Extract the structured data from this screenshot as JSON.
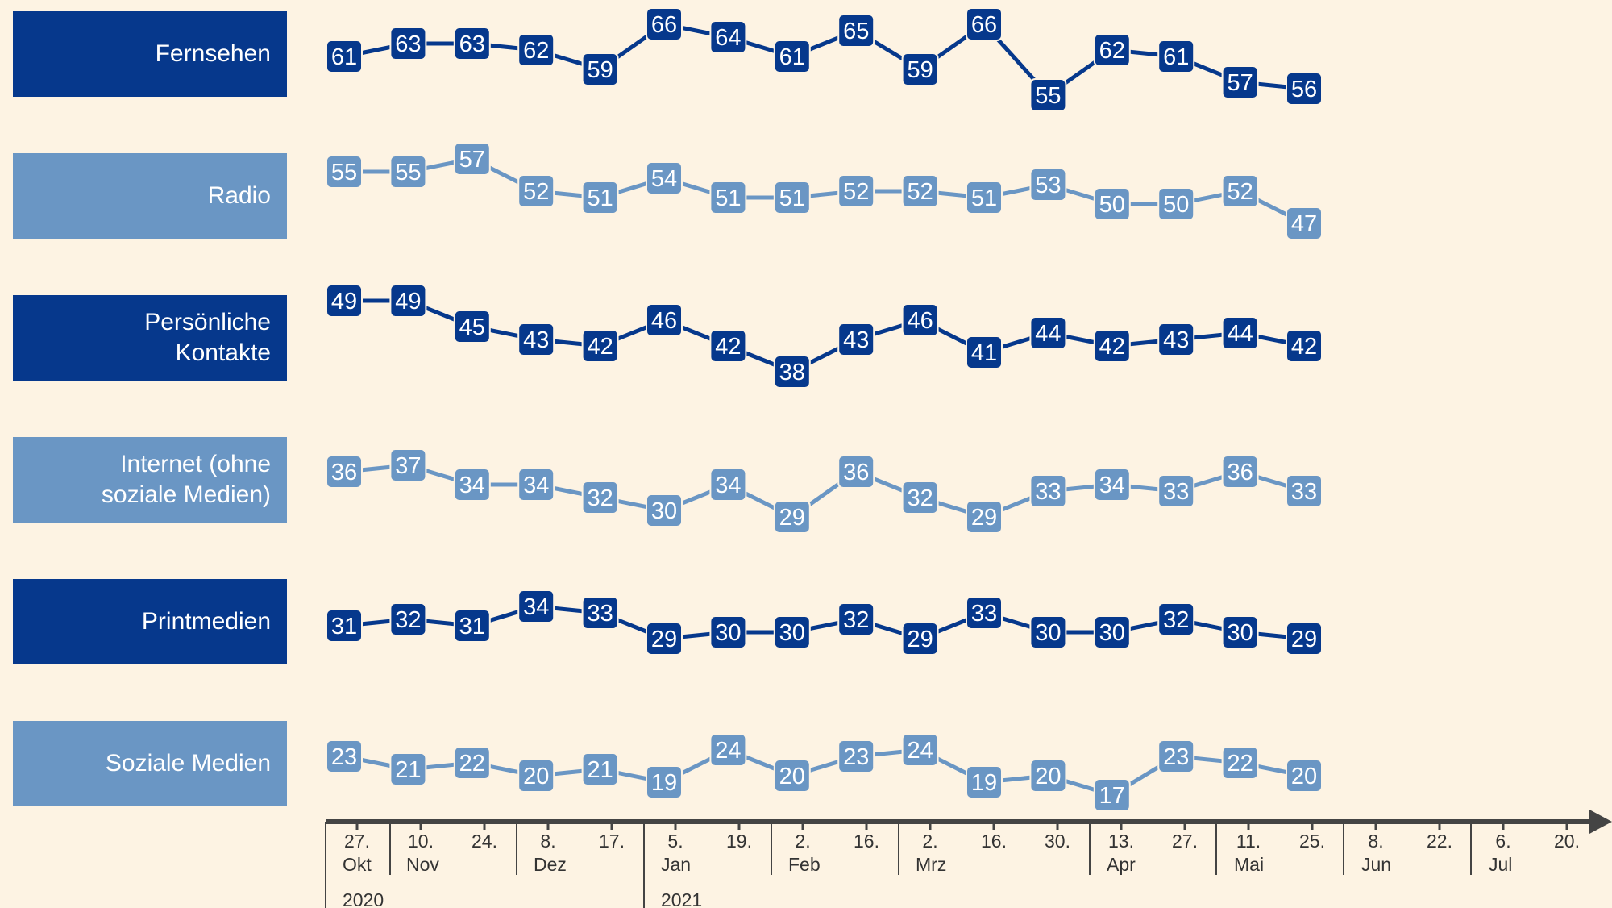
{
  "colors": {
    "background": "#fdf3e3",
    "dark_blue": "#06388c",
    "light_blue": "#6a96c4",
    "axis": "#444444"
  },
  "chart_data": {
    "type": "line",
    "title": "",
    "xlabel": "",
    "ylabel": "",
    "x": [
      "2020-10-27",
      "2020-11-10",
      "2020-11-24",
      "2020-12-08",
      "2020-12-17",
      "2021-01-05",
      "2021-01-19",
      "2021-02-02",
      "2021-02-16",
      "2021-03-02",
      "2021-03-16",
      "2021-03-30",
      "2021-04-13",
      "2021-04-27",
      "2021-05-11",
      "2021-05-25"
    ],
    "series": [
      {
        "name": "Fernsehen",
        "color": "#06388c",
        "values": [
          61,
          63,
          63,
          62,
          59,
          66,
          64,
          61,
          65,
          59,
          66,
          55,
          62,
          61,
          57,
          56
        ]
      },
      {
        "name": "Radio",
        "color": "#6a96c4",
        "values": [
          55,
          55,
          57,
          52,
          51,
          54,
          51,
          51,
          52,
          52,
          51,
          53,
          50,
          50,
          52,
          47
        ]
      },
      {
        "name": "Persönliche\nKontakte",
        "color": "#06388c",
        "values": [
          49,
          49,
          45,
          43,
          42,
          46,
          42,
          38,
          43,
          46,
          41,
          44,
          42,
          43,
          44,
          42
        ]
      },
      {
        "name": "Internet (ohne\nsoziale Medien)",
        "color": "#6a96c4",
        "values": [
          36,
          37,
          34,
          34,
          32,
          30,
          34,
          29,
          36,
          32,
          29,
          33,
          34,
          33,
          36,
          33
        ]
      },
      {
        "name": "Printmedien",
        "color": "#06388c",
        "values": [
          31,
          32,
          31,
          34,
          33,
          29,
          30,
          30,
          32,
          29,
          33,
          30,
          30,
          32,
          30,
          29
        ]
      },
      {
        "name": "Soziale Medien",
        "color": "#6a96c4",
        "values": [
          23,
          21,
          22,
          20,
          21,
          19,
          24,
          20,
          23,
          24,
          19,
          20,
          17,
          23,
          22,
          20
        ]
      }
    ],
    "x_axis": {
      "tick_labels": [
        "27.",
        "10.",
        "24.",
        "8.",
        "17.",
        "5.",
        "19.",
        "2.",
        "16.",
        "2.",
        "16.",
        "30.",
        "13.",
        "27.",
        "11.",
        "25.",
        "8.",
        "22.",
        "6.",
        "20."
      ],
      "month_labels": [
        {
          "label": "Okt",
          "tick": 0
        },
        {
          "label": "Nov",
          "tick": 1
        },
        {
          "label": "Dez",
          "tick": 3
        },
        {
          "label": "Jan",
          "tick": 5
        },
        {
          "label": "Feb",
          "tick": 7
        },
        {
          "label": "Mrz",
          "tick": 9
        },
        {
          "label": "Apr",
          "tick": 12
        },
        {
          "label": "Mai",
          "tick": 14
        },
        {
          "label": "Jun",
          "tick": 16
        },
        {
          "label": "Jul",
          "tick": 18
        }
      ],
      "year_labels": [
        {
          "label": "2020",
          "tick": 0
        },
        {
          "label": "2021",
          "tick": 5
        }
      ]
    }
  }
}
